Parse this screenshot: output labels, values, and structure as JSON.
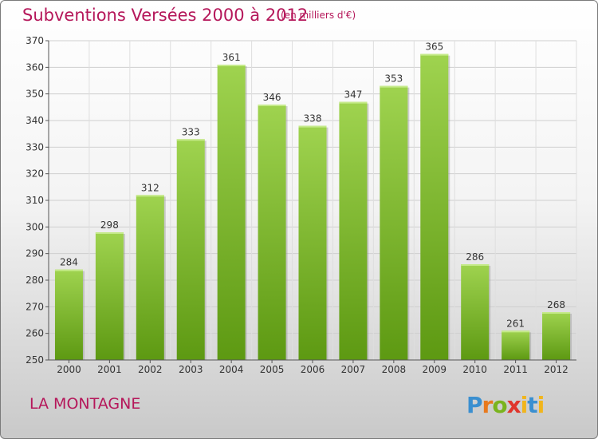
{
  "header": {
    "title": "Subventions Versées 2000 à 2012",
    "unit": "(en milliers d'€)"
  },
  "footer": {
    "commune": "LA MONTAGNE",
    "logo": "Proxiti"
  },
  "colors": {
    "title": "#b5175a",
    "bar_top": "#9fd34f",
    "bar_bottom": "#5d9912"
  },
  "chart_data": {
    "type": "bar",
    "title": "Subventions Versées 2000 à 2012",
    "subtitle": "(en milliers d'€)",
    "xlabel": "",
    "ylabel": "",
    "categories": [
      "2000",
      "2001",
      "2002",
      "2003",
      "2004",
      "2005",
      "2006",
      "2007",
      "2008",
      "2009",
      "2010",
      "2011",
      "2012"
    ],
    "values": [
      284,
      298,
      312,
      333,
      361,
      346,
      338,
      347,
      353,
      365,
      286,
      261,
      268
    ],
    "ylim": [
      250,
      370
    ],
    "yticks": [
      250,
      260,
      270,
      280,
      290,
      300,
      310,
      320,
      330,
      340,
      350,
      360,
      370
    ],
    "grid": true
  }
}
